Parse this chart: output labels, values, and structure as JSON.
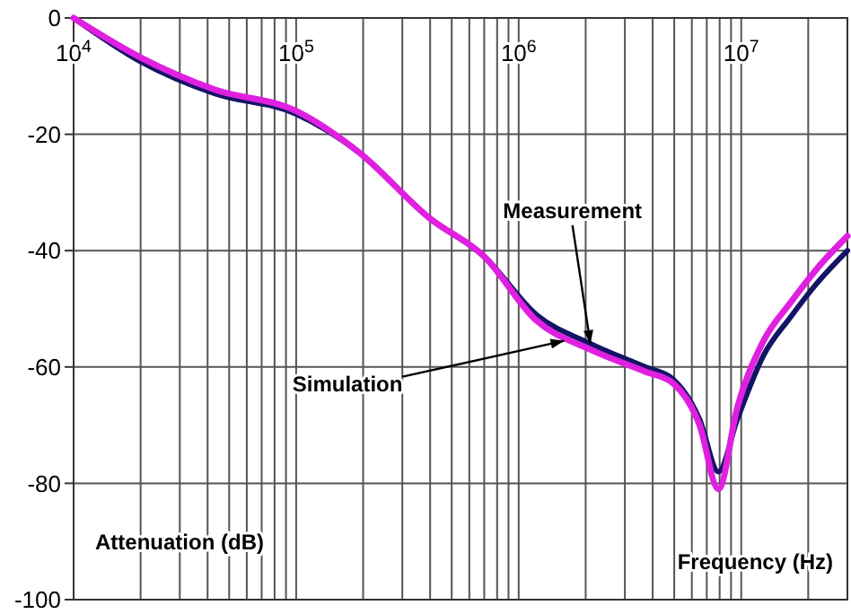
{
  "chart_data": {
    "type": "line",
    "xlabel": "Frequency (Hz)",
    "ylabel": "Attenuation (dB)",
    "log": "x",
    "grid": true,
    "line_style": "solid",
    "marker": "none",
    "xlim": [
      10000,
      30000000
    ],
    "ylim": [
      -100,
      0
    ],
    "yticks": [
      -100,
      -80,
      -60,
      -40,
      -20,
      0
    ],
    "xticks": [
      {
        "value": 10000,
        "label": "10$^{4}$"
      },
      {
        "value": 20000,
        "label": null
      },
      {
        "value": 30000,
        "label": null
      },
      {
        "value": 40000,
        "label": null
      },
      {
        "value": 50000,
        "label": null
      },
      {
        "value": 60000,
        "label": null
      },
      {
        "value": 70000,
        "label": null
      },
      {
        "value": 80000,
        "label": null
      },
      {
        "value": 90000,
        "label": null
      },
      {
        "value": 100000,
        "label": "10$^{5}$"
      },
      {
        "value": 200000,
        "label": null
      },
      {
        "value": 300000,
        "label": null
      },
      {
        "value": 400000,
        "label": null
      },
      {
        "value": 500000,
        "label": null
      },
      {
        "value": 600000,
        "label": null
      },
      {
        "value": 700000,
        "label": null
      },
      {
        "value": 800000,
        "label": null
      },
      {
        "value": 900000,
        "label": null
      },
      {
        "value": 1000000,
        "label": "10$^{6}$"
      },
      {
        "value": 2000000,
        "label": null
      },
      {
        "value": 3000000,
        "label": null
      },
      {
        "value": 4000000,
        "label": null
      },
      {
        "value": 5000000,
        "label": null
      },
      {
        "value": 6000000,
        "label": null
      },
      {
        "value": 7000000,
        "label": null
      },
      {
        "value": 8000000,
        "label": null
      },
      {
        "value": 9000000,
        "label": null
      },
      {
        "value": 10000000,
        "label": "10$^{7}$"
      },
      {
        "value": 20000000,
        "label": null
      }
    ],
    "series": [
      {
        "color": "#141466",
        "x": [
          10000,
          20000,
          43000,
          100000,
          190000,
          400000,
          700000,
          1200000,
          2100000,
          3700000,
          4900000,
          6500000,
          7900000,
          9600000,
          12600000,
          16600000,
          22000000,
          30000000
        ],
        "values": [
          0,
          -7.5,
          -13,
          -16.5,
          -23,
          -34.5,
          -41,
          -51,
          -56,
          -60,
          -62,
          -69,
          -78,
          -69,
          -58,
          -51.5,
          -45.5,
          -40
        ]
      },
      {
        "color": "#e020e0",
        "x": [
          10000,
          20000,
          43000,
          100000,
          190000,
          400000,
          700000,
          1200000,
          2100000,
          3700000,
          4900000,
          6500000,
          7900000,
          9600000,
          12600000,
          16600000,
          22000000,
          30000000
        ],
        "values": [
          0,
          -6.8,
          -12.3,
          -16,
          -23,
          -34.5,
          -41,
          -52,
          -57,
          -60.8,
          -62.7,
          -70,
          -81,
          -67,
          -55.5,
          -49,
          -43,
          -37.5
        ]
      }
    ],
    "annotations": [
      {
        "text": "Measurement",
        "x": 2100000,
        "y": -56
      },
      {
        "text": "Simulation",
        "x": 1600000,
        "y": -55.5
      }
    ]
  }
}
